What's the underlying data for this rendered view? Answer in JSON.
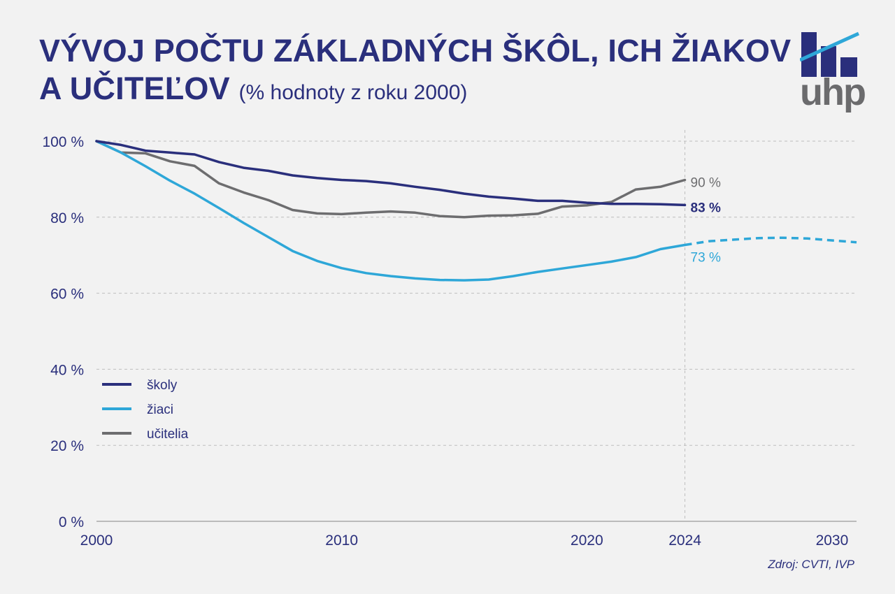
{
  "header": {
    "title_line1": "VÝVOJ POČTU ZÁKLADNÝCH ŠKÔL, ICH ŽIAKOV",
    "title_line2": "A UČITEĽOV",
    "subtitle": "(% hodnoty z roku 2000)"
  },
  "logo": {
    "text": "uhp"
  },
  "source": "Zdroj: CVTI, IVP",
  "colors": {
    "skoly": "#2a2f7c",
    "ziaci": "#2ea7d8",
    "ucitelia": "#6d6d6f",
    "grid": "#bdbdbd"
  },
  "chart_data": {
    "type": "line",
    "x_ticks": [
      2000,
      2010,
      2020,
      2024,
      2030
    ],
    "y_ticks": [
      "0 %",
      "20 %",
      "40 %",
      "60 %",
      "80 %",
      "100 %"
    ],
    "ylim": [
      0,
      100
    ],
    "xlim": [
      2000,
      2031
    ],
    "grid": true,
    "legend_position": "left-bottom",
    "marker_year": 2024,
    "series": [
      {
        "key": "skoly",
        "name": "školy",
        "end_label": "83 %",
        "x": [
          2000,
          2001,
          2002,
          2003,
          2004,
          2005,
          2006,
          2007,
          2008,
          2009,
          2010,
          2011,
          2012,
          2013,
          2014,
          2015,
          2016,
          2017,
          2018,
          2019,
          2020,
          2021,
          2022,
          2023,
          2024
        ],
        "y": [
          100,
          99,
          97.5,
          97,
          96.5,
          94.5,
          93,
          92.2,
          91,
          90.3,
          89.8,
          89.5,
          88.9,
          88,
          87.2,
          86.2,
          85.4,
          84.9,
          84.3,
          84.3,
          83.8,
          83.5,
          83.5,
          83.4,
          83.2
        ]
      },
      {
        "key": "ziaci",
        "name": "žiaci",
        "end_label": "73 %",
        "x": [
          2000,
          2001,
          2002,
          2003,
          2004,
          2005,
          2006,
          2007,
          2008,
          2009,
          2010,
          2011,
          2012,
          2013,
          2014,
          2015,
          2016,
          2017,
          2018,
          2019,
          2020,
          2021,
          2022,
          2023,
          2024
        ],
        "y": [
          100,
          97,
          93.4,
          89.6,
          86.2,
          82.4,
          78.5,
          74.8,
          71.1,
          68.5,
          66.6,
          65.3,
          64.5,
          63.9,
          63.5,
          63.4,
          63.6,
          64.5,
          65.6,
          66.5,
          67.4,
          68.3,
          69.5,
          71.6,
          72.7
        ],
        "forecast_x": [
          2024,
          2025,
          2026,
          2027,
          2028,
          2029,
          2030,
          2031
        ],
        "forecast_y": [
          72.7,
          73.7,
          74.1,
          74.5,
          74.6,
          74.4,
          73.9,
          73.4
        ]
      },
      {
        "key": "ucitelia",
        "name": "učitelia",
        "end_label": "90 %",
        "x": [
          2000,
          2001,
          2002,
          2003,
          2004,
          2005,
          2006,
          2007,
          2008,
          2009,
          2010,
          2011,
          2012,
          2013,
          2014,
          2015,
          2016,
          2017,
          2018,
          2019,
          2020,
          2021,
          2022,
          2023,
          2024
        ],
        "y": [
          100,
          97,
          96.8,
          94.7,
          93.5,
          88.9,
          86.5,
          84.5,
          81.9,
          81,
          80.8,
          81.2,
          81.5,
          81.2,
          80.3,
          80,
          80.4,
          80.5,
          80.9,
          82.8,
          83.1,
          84,
          87.3,
          88,
          89.8
        ]
      }
    ]
  }
}
